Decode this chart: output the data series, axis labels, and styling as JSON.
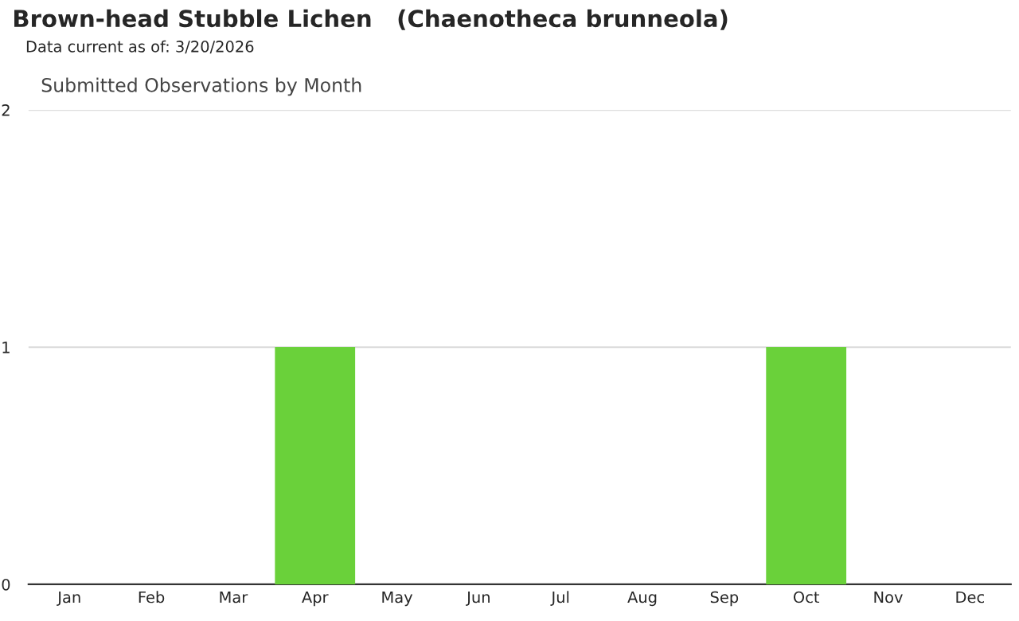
{
  "chart_data": {
    "type": "bar",
    "title": "Brown-head Stubble Lichen   (Chaenotheca brunneola)",
    "subtitle": "Data current as of: 3/20/2026",
    "annotations": [
      "Submitted Observations by Month"
    ],
    "categories": [
      "Jan",
      "Feb",
      "Mar",
      "Apr",
      "May",
      "Jun",
      "Jul",
      "Aug",
      "Sep",
      "Oct",
      "Nov",
      "Dec"
    ],
    "values": [
      0,
      0,
      0,
      1,
      0,
      0,
      0,
      0,
      0,
      1,
      0,
      0
    ],
    "color": "#6ad13a",
    "ylim": [
      0,
      2
    ],
    "yticks": [
      0,
      1,
      2
    ],
    "grid": "y",
    "legend": false
  }
}
